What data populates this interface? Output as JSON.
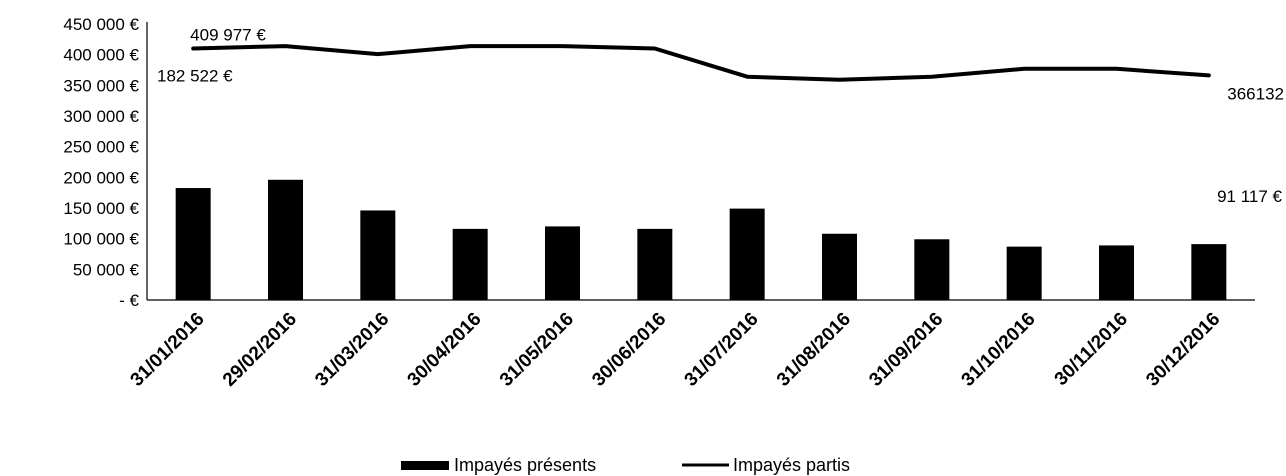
{
  "chart_data": {
    "type": "bar",
    "categories": [
      "31/01/2016",
      "29/02/2016",
      "31/03/2016",
      "30/04/2016",
      "31/05/2016",
      "30/06/2016",
      "31/07/2016",
      "31/08/2016",
      "31/09/2016",
      "31/10/2016",
      "30/11/2016",
      "30/12/2016"
    ],
    "ylim": [
      0,
      450000
    ],
    "y_ticks": [
      {
        "value": 0,
        "label": "-  €"
      },
      {
        "value": 50000,
        "label": "50 000 €"
      },
      {
        "value": 100000,
        "label": "100 000 €"
      },
      {
        "value": 150000,
        "label": "150 000 €"
      },
      {
        "value": 200000,
        "label": "200 000 €"
      },
      {
        "value": 250000,
        "label": "250 000 €"
      },
      {
        "value": 300000,
        "label": "300 000 €"
      },
      {
        "value": 350000,
        "label": "350 000 €"
      },
      {
        "value": 400000,
        "label": "400 000 €"
      },
      {
        "value": 450000,
        "label": "450 000 €"
      }
    ],
    "series": [
      {
        "name": "Impayés présents",
        "type": "bar",
        "color": "#000000",
        "values": [
          182522,
          196000,
          146000,
          116000,
          120000,
          116000,
          149000,
          108000,
          99000,
          87000,
          89000,
          91117
        ]
      },
      {
        "name": "Impayés partis",
        "type": "line",
        "color": "#000000",
        "values": [
          409977,
          414000,
          401000,
          414000,
          414000,
          410000,
          364000,
          359000,
          364000,
          377000,
          377000,
          366132
        ]
      }
    ],
    "annotations": [
      {
        "text": "409 977 €",
        "series": 1,
        "index": 0
      },
      {
        "text": "182 522 €",
        "series": 0,
        "index": 0
      },
      {
        "text": "366132",
        "series": 1,
        "index": 11
      },
      {
        "text": "91 117 €",
        "series": 0,
        "index": 11
      }
    ],
    "legend": {
      "position": "bottom",
      "items": [
        "Impayés présents",
        "Impayés partis"
      ]
    },
    "grid": false
  }
}
